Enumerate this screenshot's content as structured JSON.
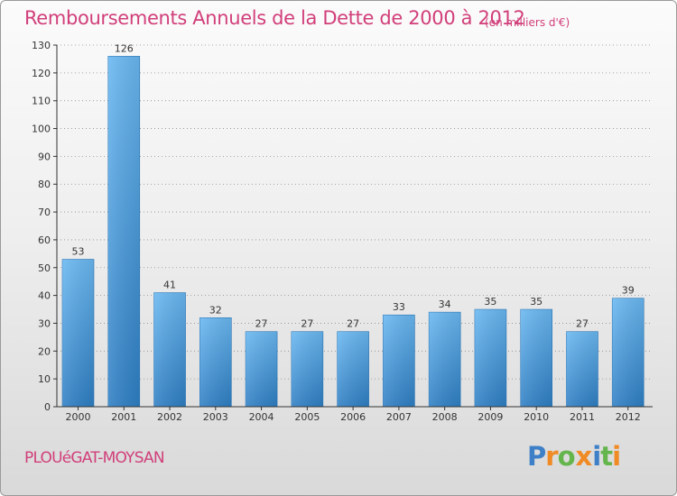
{
  "header": {
    "title": "Remboursements Annuels de la Dette de 2000 à 2012",
    "subtitle": "(en milliers d'€)"
  },
  "footer": {
    "commune": "PLOUéGAT-MOYSAN",
    "logo": {
      "text": "Proxiti",
      "letters": [
        "P",
        "r",
        "o",
        "x",
        "i",
        "t",
        "i"
      ],
      "colors": [
        "#3d80c7",
        "#f08a24",
        "#63b54c",
        "#f08a24",
        "#3d80c7",
        "#63b54c",
        "#f08a24"
      ]
    }
  },
  "chart_data": {
    "type": "bar",
    "categories": [
      "2000",
      "2001",
      "2002",
      "2003",
      "2004",
      "2005",
      "2006",
      "2007",
      "2008",
      "2009",
      "2010",
      "2011",
      "2012"
    ],
    "values": [
      53,
      126,
      41,
      32,
      27,
      27,
      27,
      33,
      34,
      35,
      35,
      27,
      39
    ],
    "title": "Remboursements Annuels de la Dette de 2000 à 2012",
    "subtitle": "(en milliers d'€)",
    "xlabel": "",
    "ylabel": "",
    "ylim": [
      0,
      130
    ],
    "yticks": [
      0,
      10,
      20,
      30,
      40,
      50,
      60,
      70,
      80,
      90,
      100,
      110,
      120,
      130
    ],
    "grid": true,
    "legend": "none",
    "colors": {
      "bar_top": "#63b7f2",
      "bar_bottom": "#2f82c6",
      "title": "#d13f7a",
      "axis": "#555555",
      "grid": "#8c8c8c"
    }
  }
}
